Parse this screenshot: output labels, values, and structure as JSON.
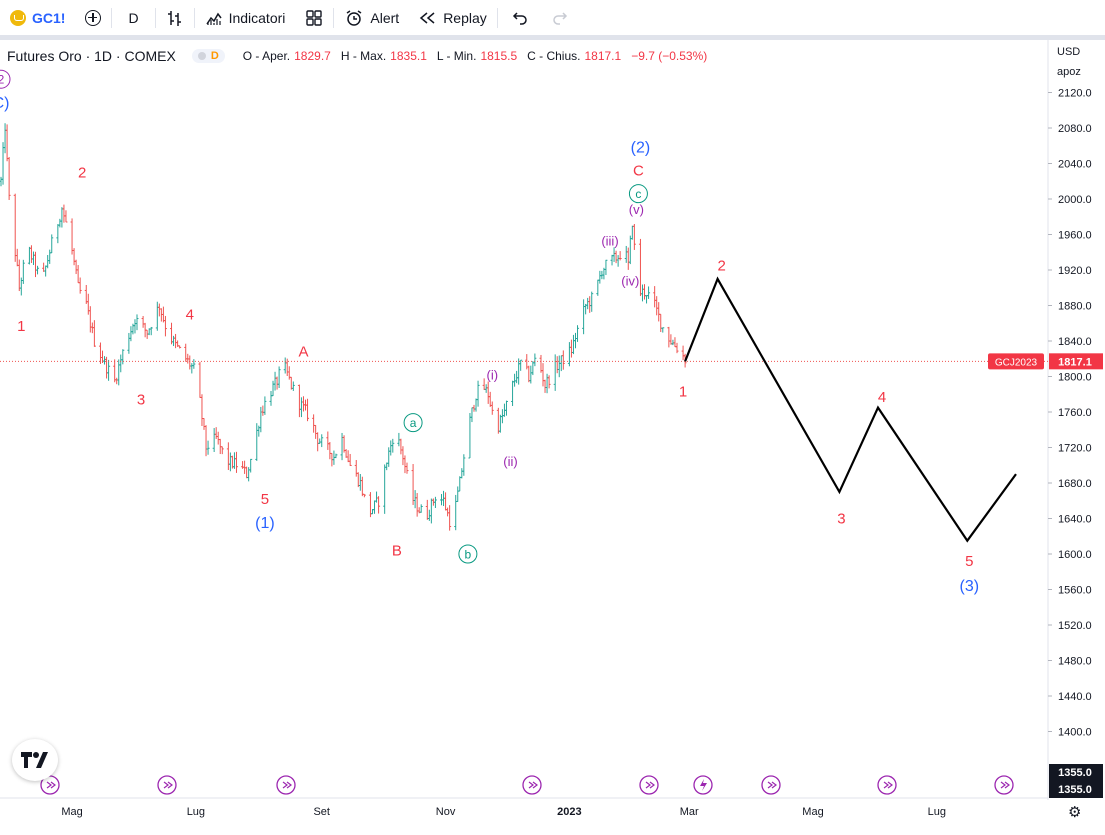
{
  "toolbar": {
    "symbol": "GC1!",
    "interval": "D",
    "indicators_label": "Indicatori",
    "alert_label": "Alert",
    "replay_label": "Replay"
  },
  "legend": {
    "title": "Futures Oro · 1D · COMEX",
    "badge": "D",
    "open_label": "O - Aper.",
    "open": "1829.7",
    "high_label": "H - Max.",
    "high": "1835.1",
    "low_label": "L - Min.",
    "low": "1815.5",
    "close_label": "C - Chius.",
    "close": "1817.1",
    "change": "−9.7 (−0.53%)"
  },
  "axis": {
    "currency": "USD",
    "scale_mode": "apoz",
    "price_tag_symbol": "GCJ2023",
    "price_tag_value": "1817.1",
    "bottom_tag_1": "1355.0",
    "bottom_tag_2": "1355.0"
  },
  "colors": {
    "up": "#26a69a",
    "down": "#ef5350",
    "red_label": "#f23645",
    "blue_label": "#2962ff",
    "purple_label": "#9c27b0",
    "green_label": "#089981",
    "projection": "#000000"
  },
  "chart_data": {
    "type": "ohlc-bar",
    "symbol": "GC1!",
    "timeframe": "1D",
    "y_ticks": [
      1400,
      1440,
      1480,
      1520,
      1560,
      1600,
      1640,
      1680,
      1720,
      1760,
      1800,
      1840,
      1880,
      1920,
      1960,
      2000,
      2040,
      2080,
      2120
    ],
    "x_ticks": [
      {
        "label": "Mag",
        "day": 35
      },
      {
        "label": "Lug",
        "day": 96
      },
      {
        "label": "Set",
        "day": 158
      },
      {
        "label": "Nov",
        "day": 219
      },
      {
        "label": "2023",
        "day": 280
      },
      {
        "label": "Mar",
        "day": 339
      },
      {
        "label": "Mag",
        "day": 400
      },
      {
        "label": "Lug",
        "day": 461
      }
    ],
    "price_path": [
      [
        0,
        2020
      ],
      [
        2,
        2082
      ],
      [
        4,
        2000
      ],
      [
        6,
        1960
      ],
      [
        9,
        1900
      ],
      [
        13,
        1945
      ],
      [
        16,
        1930
      ],
      [
        20,
        1905
      ],
      [
        25,
        1950
      ],
      [
        30,
        1990
      ],
      [
        34,
        1955
      ],
      [
        38,
        1900
      ],
      [
        42,
        1880
      ],
      [
        46,
        1840
      ],
      [
        51,
        1815
      ],
      [
        56,
        1795
      ],
      [
        61,
        1835
      ],
      [
        66,
        1865
      ],
      [
        72,
        1850
      ],
      [
        78,
        1880
      ],
      [
        82,
        1850
      ],
      [
        86,
        1835
      ],
      [
        91,
        1820
      ],
      [
        96,
        1805
      ],
      [
        101,
        1720
      ],
      [
        106,
        1730
      ],
      [
        111,
        1705
      ],
      [
        117,
        1700
      ],
      [
        121,
        1690
      ],
      [
        124,
        1715
      ],
      [
        128,
        1760
      ],
      [
        132,
        1780
      ],
      [
        136,
        1795
      ],
      [
        139,
        1815
      ],
      [
        143,
        1790
      ],
      [
        147,
        1770
      ],
      [
        152,
        1755
      ],
      [
        156,
        1730
      ],
      [
        160,
        1720
      ],
      [
        164,
        1710
      ],
      [
        168,
        1730
      ],
      [
        172,
        1700
      ],
      [
        177,
        1680
      ],
      [
        181,
        1645
      ],
      [
        186,
        1660
      ],
      [
        190,
        1705
      ],
      [
        194,
        1740
      ],
      [
        198,
        1710
      ],
      [
        202,
        1665
      ],
      [
        206,
        1650
      ],
      [
        210,
        1645
      ],
      [
        214,
        1665
      ],
      [
        218,
        1660
      ],
      [
        222,
        1630
      ],
      [
        226,
        1680
      ],
      [
        230,
        1740
      ],
      [
        234,
        1780
      ],
      [
        237,
        1790
      ],
      [
        240,
        1780
      ],
      [
        244,
        1740
      ],
      [
        248,
        1760
      ],
      [
        252,
        1790
      ],
      [
        256,
        1815
      ],
      [
        260,
        1800
      ],
      [
        264,
        1825
      ],
      [
        268,
        1790
      ],
      [
        273,
        1810
      ],
      [
        277,
        1820
      ],
      [
        281,
        1830
      ],
      [
        285,
        1860
      ],
      [
        288,
        1880
      ],
      [
        292,
        1890
      ],
      [
        296,
        1920
      ],
      [
        300,
        1930
      ],
      [
        304,
        1935
      ],
      [
        307,
        1945
      ],
      [
        309,
        1925
      ],
      [
        311,
        1975
      ],
      [
        313,
        1915
      ],
      [
        315,
        1895
      ],
      [
        318,
        1895
      ],
      [
        322,
        1880
      ],
      [
        326,
        1855
      ],
      [
        330,
        1840
      ],
      [
        334,
        1830
      ],
      [
        337,
        1820
      ]
    ],
    "projection_path": [
      [
        337,
        1817
      ],
      [
        353,
        1910
      ],
      [
        413,
        1670
      ],
      [
        432,
        1765
      ],
      [
        476,
        1615
      ],
      [
        500,
        1690
      ]
    ],
    "last_close": 1817.1,
    "wave_labels": [
      {
        "text": "2",
        "day": 0,
        "price": 2135,
        "color": "purple",
        "circle": true
      },
      {
        "text": "C)",
        "day": 0,
        "price": 2108,
        "color": "blue"
      },
      {
        "text": "2",
        "day": 40,
        "price": 2030,
        "color": "red"
      },
      {
        "text": "1",
        "day": 10,
        "price": 1857,
        "color": "red"
      },
      {
        "text": "4",
        "day": 93,
        "price": 1870,
        "color": "red"
      },
      {
        "text": "3",
        "day": 69,
        "price": 1774,
        "color": "red"
      },
      {
        "text": "5",
        "day": 130,
        "price": 1662,
        "color": "red"
      },
      {
        "text": "(1)",
        "day": 130,
        "price": 1635,
        "color": "blue"
      },
      {
        "text": "A",
        "day": 149,
        "price": 1828,
        "color": "red"
      },
      {
        "text": "a",
        "day": 203,
        "price": 1748,
        "color": "green",
        "circle": true
      },
      {
        "text": "B",
        "day": 195,
        "price": 1604,
        "color": "red"
      },
      {
        "text": "b",
        "day": 230,
        "price": 1600,
        "color": "green",
        "circle": true
      },
      {
        "text": "(i)",
        "day": 242,
        "price": 1802,
        "color": "purple"
      },
      {
        "text": "(ii)",
        "day": 251,
        "price": 1705,
        "color": "purple"
      },
      {
        "text": "(iii)",
        "day": 300,
        "price": 1953,
        "color": "purple"
      },
      {
        "text": "(iv)",
        "day": 310,
        "price": 1908,
        "color": "purple"
      },
      {
        "text": "(v)",
        "day": 313,
        "price": 1989,
        "color": "purple"
      },
      {
        "text": "c",
        "day": 314,
        "price": 2006,
        "color": "green",
        "circle": true
      },
      {
        "text": "C",
        "day": 314,
        "price": 2032,
        "color": "red"
      },
      {
        "text": "(2)",
        "day": 315,
        "price": 2058,
        "color": "blue"
      },
      {
        "text": "1",
        "day": 336,
        "price": 1783,
        "color": "red"
      },
      {
        "text": "2",
        "day": 355,
        "price": 1925,
        "color": "red"
      },
      {
        "text": "4",
        "day": 434,
        "price": 1777,
        "color": "red"
      },
      {
        "text": "3",
        "day": 414,
        "price": 1640,
        "color": "red"
      },
      {
        "text": "5",
        "day": 477,
        "price": 1592,
        "color": "red"
      },
      {
        "text": "(3)",
        "day": 477,
        "price": 1564,
        "color": "blue"
      }
    ]
  }
}
